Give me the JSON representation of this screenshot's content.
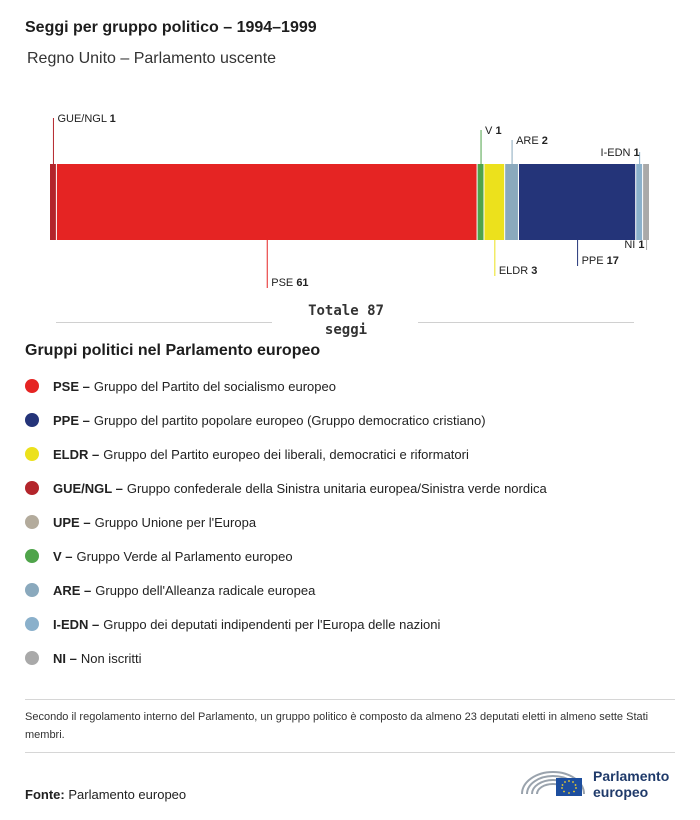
{
  "title": "Seggi per gruppo politico – 1994–1999",
  "subtitle": "Regno Unito – Parlamento uscente",
  "total_line1": "Totale 87",
  "total_line2": "seggi",
  "legend_title": "Gruppi politici nel Parlamento europeo",
  "chart_data": {
    "type": "bar",
    "orientation": "horizontal-stacked",
    "total": 87,
    "segments": [
      {
        "label": "GUE/NGL",
        "value": 1,
        "color": "#b3252b"
      },
      {
        "label": "PSE",
        "value": 61,
        "color": "#e52423"
      },
      {
        "label": "V",
        "value": 1,
        "color": "#4fa44a"
      },
      {
        "label": "ELDR",
        "value": 3,
        "color": "#ece11c"
      },
      {
        "label": "ARE",
        "value": 2,
        "color": "#8aa9bd"
      },
      {
        "label": "PPE",
        "value": 17,
        "color": "#243479"
      },
      {
        "label": "I-EDN",
        "value": 1,
        "color": "#8ab0cb"
      },
      {
        "label": "NI",
        "value": 1,
        "color": "#a9a9a9"
      }
    ],
    "labels_text": [
      {
        "name": "GUE/NGL",
        "value": "1"
      },
      {
        "name": "PSE",
        "value": "61"
      },
      {
        "name": "V",
        "value": "1"
      },
      {
        "name": "ELDR",
        "value": "3"
      },
      {
        "name": "ARE",
        "value": "2"
      },
      {
        "name": "PPE",
        "value": "17"
      },
      {
        "name": "I-EDN",
        "value": "1"
      },
      {
        "name": "NI",
        "value": "1"
      }
    ]
  },
  "legend": [
    {
      "abbr": "PSE –",
      "text": "Gruppo del Partito del socialismo europeo",
      "color": "#e52423"
    },
    {
      "abbr": "PPE –",
      "text": "Gruppo del partito popolare europeo (Gruppo democratico cristiano)",
      "color": "#243479"
    },
    {
      "abbr": "ELDR –",
      "text": "Gruppo del Partito europeo dei liberali, democratici e riformatori",
      "color": "#ece11c"
    },
    {
      "abbr": "GUE/NGL –",
      "text": "Gruppo confederale della Sinistra unitaria europea/Sinistra verde nordica",
      "color": "#b3252b"
    },
    {
      "abbr": "UPE –",
      "text": "Gruppo Unione per l'Europa",
      "color": "#b3ab9c"
    },
    {
      "abbr": "V –",
      "text": "Gruppo Verde al Parlamento europeo",
      "color": "#4fa44a"
    },
    {
      "abbr": "ARE –",
      "text": "Gruppo dell'Alleanza radicale europea",
      "color": "#8aa9bd"
    },
    {
      "abbr": "I-EDN –",
      "text": "Gruppo dei deputati indipendenti per l'Europa delle nazioni",
      "color": "#8ab0cb"
    },
    {
      "abbr": "NI –",
      "text": "Non iscritti",
      "color": "#a9a9a9"
    }
  ],
  "note": "Secondo il regolamento interno del Parlamento, un gruppo politico è composto da almeno 23 deputati eletti in almeno sette Stati membri.",
  "source_label": "Fonte:",
  "source_text": "Parlamento europeo",
  "logo_line1": "Parlamento",
  "logo_line2": "europeo"
}
